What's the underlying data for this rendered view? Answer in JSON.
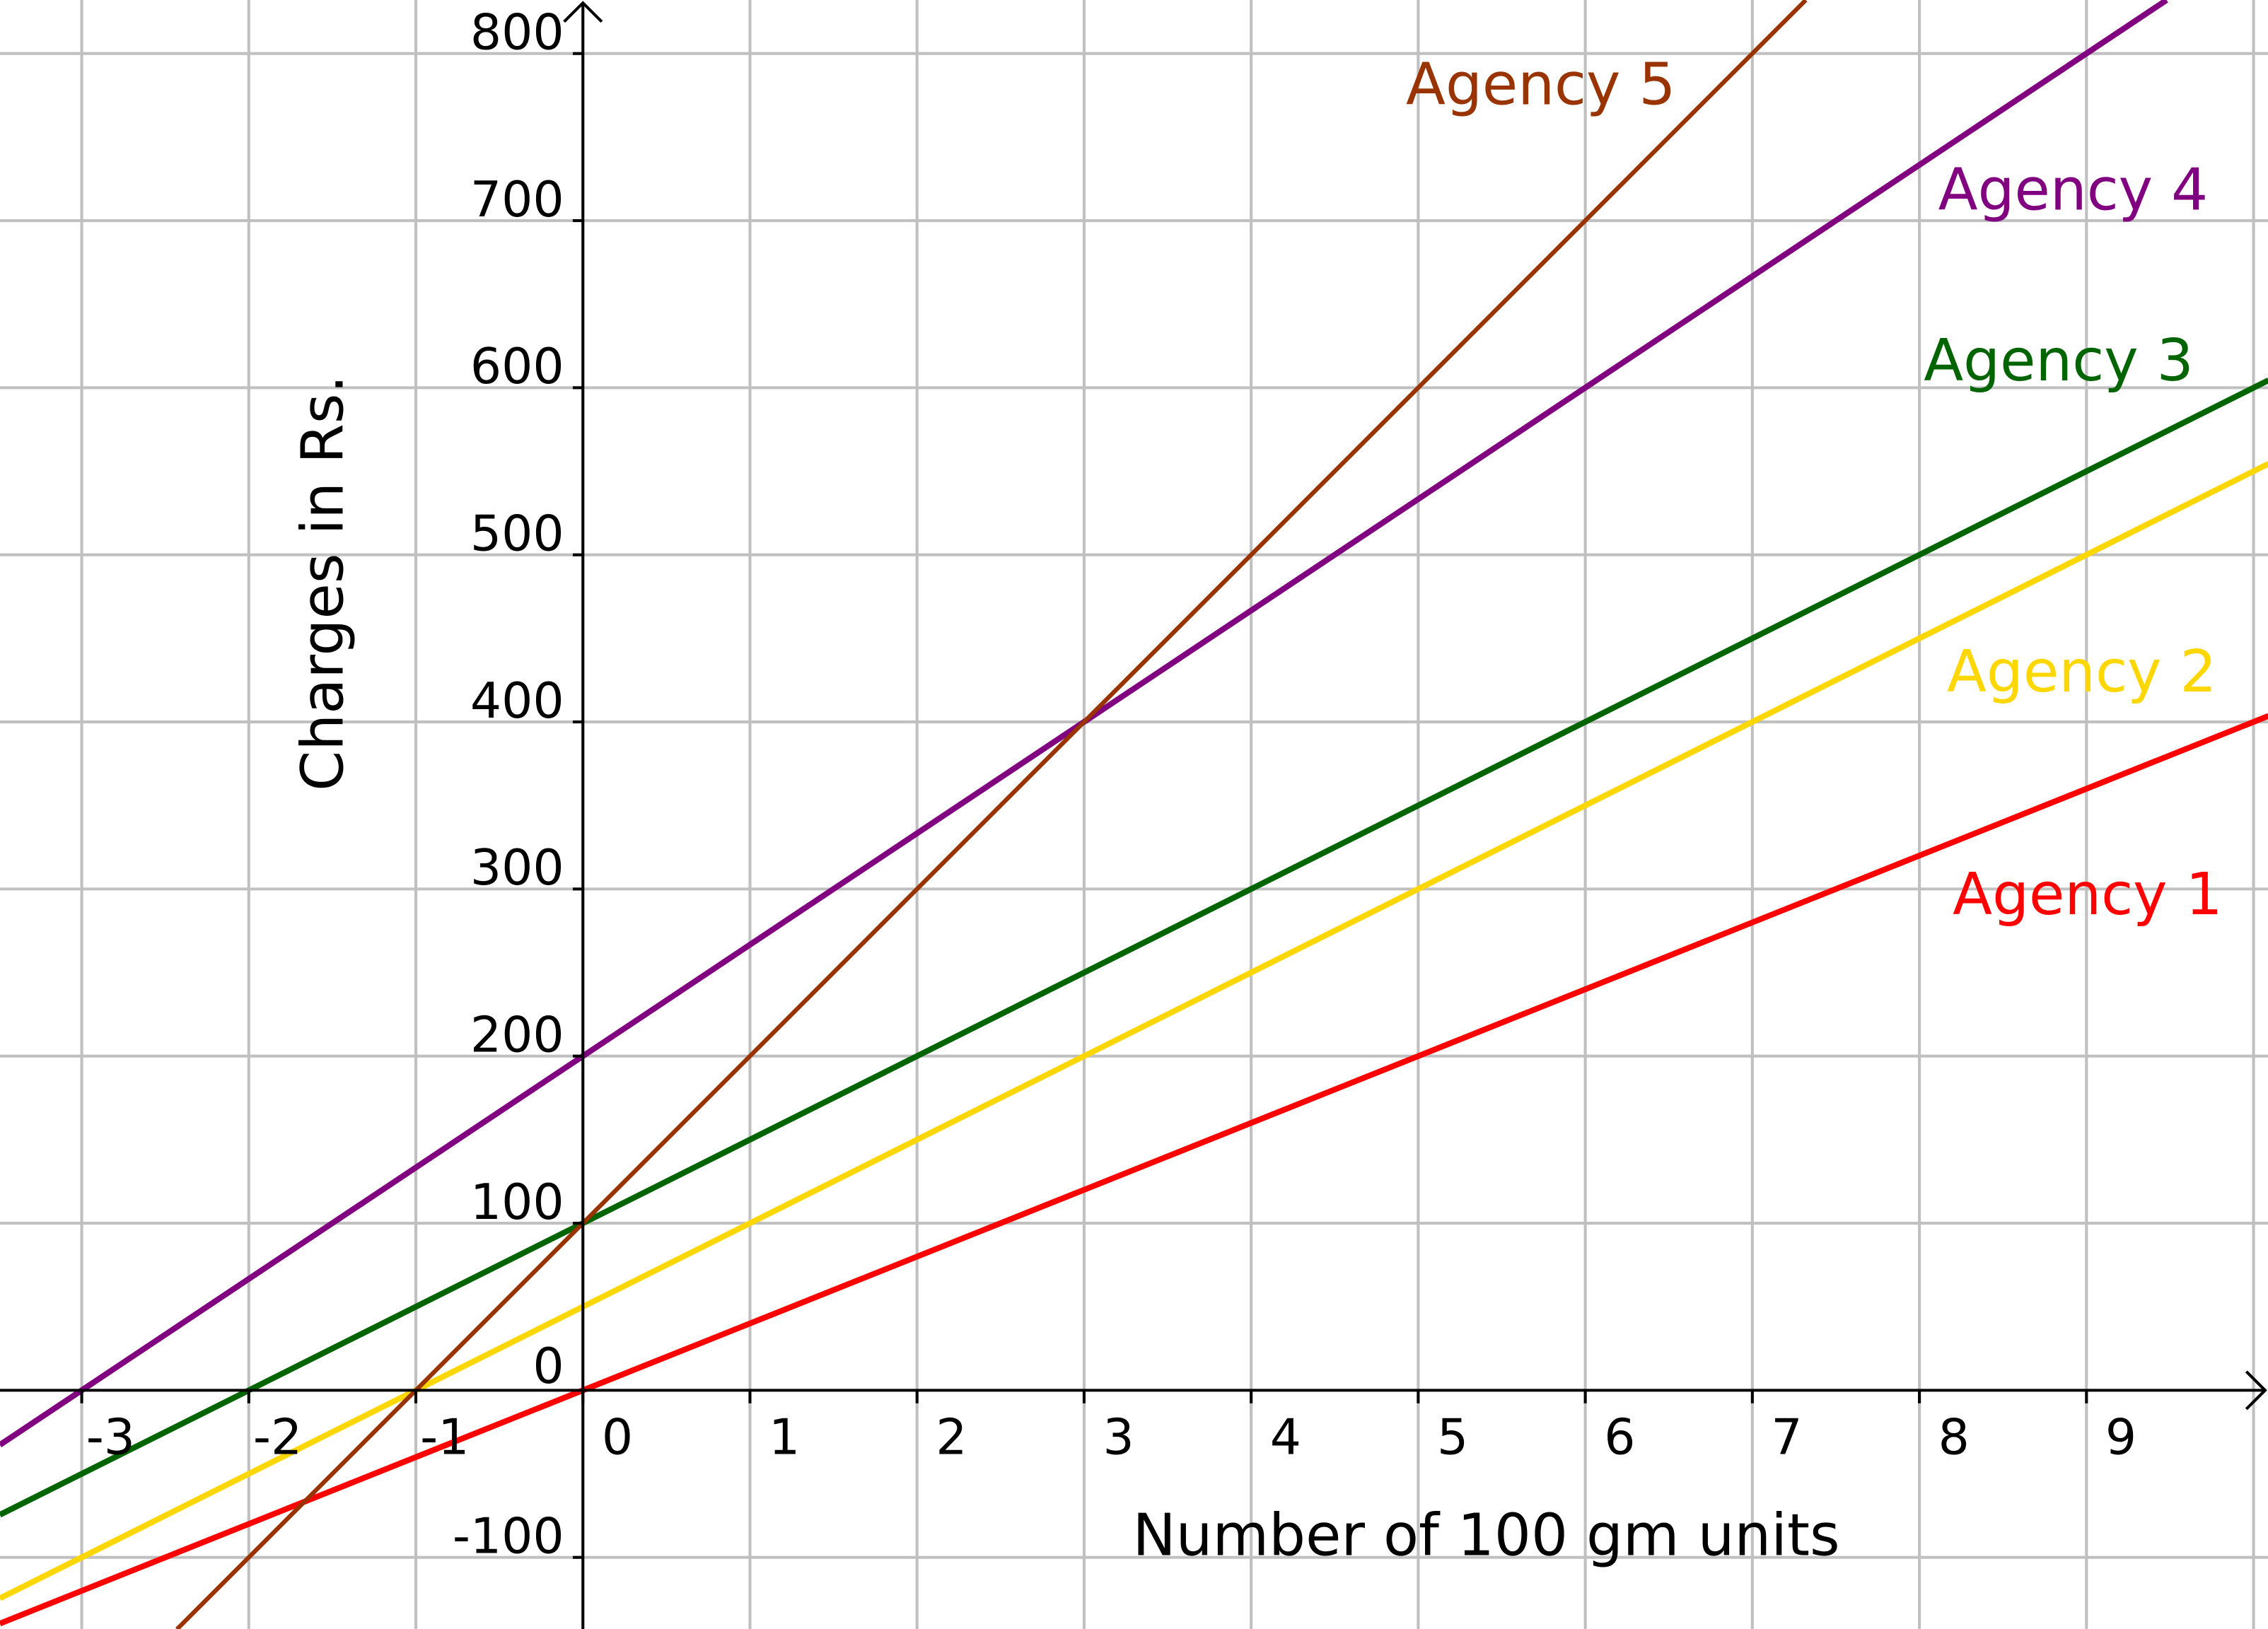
{
  "chart_data": {
    "type": "line",
    "title": "",
    "xlabel": "Number of 100 gm units",
    "ylabel": "Charges in Rs.",
    "xlim": [
      -3.49,
      10.09
    ],
    "ylim": [
      -143,
      832
    ],
    "grid": true,
    "x_ticks": [
      "-3",
      "-2",
      "-1",
      "0",
      "1",
      "2",
      "3",
      "4",
      "5",
      "6",
      "7",
      "8",
      "9"
    ],
    "y_ticks": [
      "-100",
      "0",
      "100",
      "200",
      "300",
      "400",
      "500",
      "600",
      "700",
      "800"
    ],
    "series": [
      {
        "name": "Agency 1",
        "slope": 40,
        "intercept": 0,
        "color": "#ff0000"
      },
      {
        "name": "Agency 2",
        "slope": 50,
        "intercept": 50,
        "color": "#ffd700"
      },
      {
        "name": "Agency 3",
        "slope": 50,
        "intercept": 100,
        "color": "#006400"
      },
      {
        "name": "Agency 4",
        "slope": 66.67,
        "intercept": 200,
        "color": "#800080"
      },
      {
        "name": "Agency 5",
        "slope": 100,
        "intercept": 100,
        "color": "#993300"
      }
    ],
    "colors": {
      "grid": "#c0c0c0",
      "axis": "#000000"
    }
  }
}
